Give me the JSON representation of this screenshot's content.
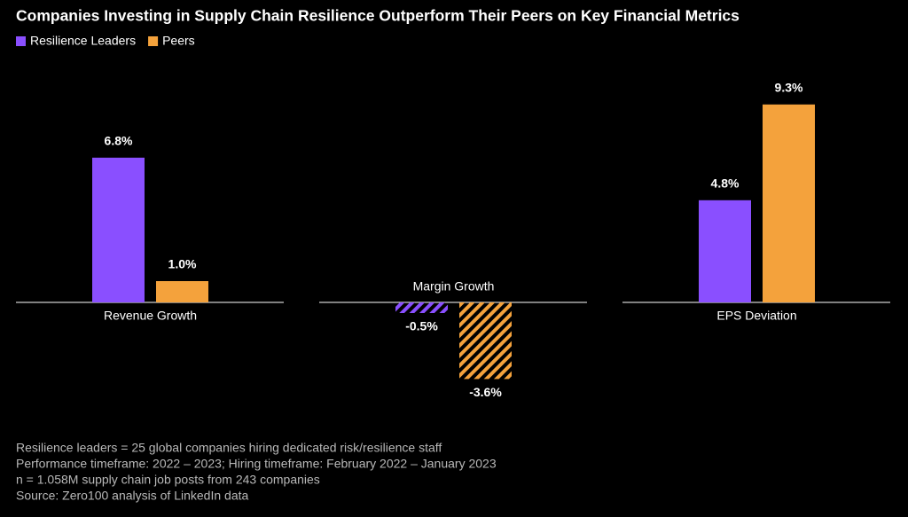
{
  "title": "Companies Investing in Supply Chain Resilience Outperform Their Peers on Key Financial Metrics",
  "notes": [
    "Resilience leaders = 25 global companies hiring dedicated risk/resilience staff",
    "Performance timeframe: 2022 – 2023; Hiring timeframe: February 2022 – January 2023",
    "n = 1.058M supply chain job posts from 243 companies",
    "Source: Zero100 analysis of LinkedIn data"
  ],
  "chart_data": [
    {
      "type": "bar",
      "categories": [
        "Revenue Growth"
      ],
      "series": [
        {
          "name": "Resilience Leaders",
          "color": "#8a4fff",
          "values": [
            6.8
          ],
          "value_labels": [
            "6.8%"
          ]
        },
        {
          "name": "Peers",
          "color": "#f4a23c",
          "values": [
            1.0
          ],
          "value_labels": [
            "1.0%"
          ]
        }
      ]
    },
    {
      "type": "bar",
      "categories": [
        "Margin Growth"
      ],
      "series": [
        {
          "name": "Resilience Leaders",
          "color": "#8a4fff",
          "values": [
            -0.5
          ],
          "value_labels": [
            "-0.5%"
          ]
        },
        {
          "name": "Peers",
          "color": "#f4a23c",
          "values": [
            -3.6
          ],
          "value_labels": [
            "-3.6%"
          ]
        }
      ]
    },
    {
      "type": "bar",
      "categories": [
        "EPS Deviation"
      ],
      "series": [
        {
          "name": "Resilience Leaders",
          "color": "#8a4fff",
          "values": [
            4.8
          ],
          "value_labels": [
            "4.8%"
          ]
        },
        {
          "name": "Peers",
          "color": "#f4a23c",
          "values": [
            9.3
          ],
          "value_labels": [
            "9.3%"
          ]
        }
      ]
    }
  ]
}
